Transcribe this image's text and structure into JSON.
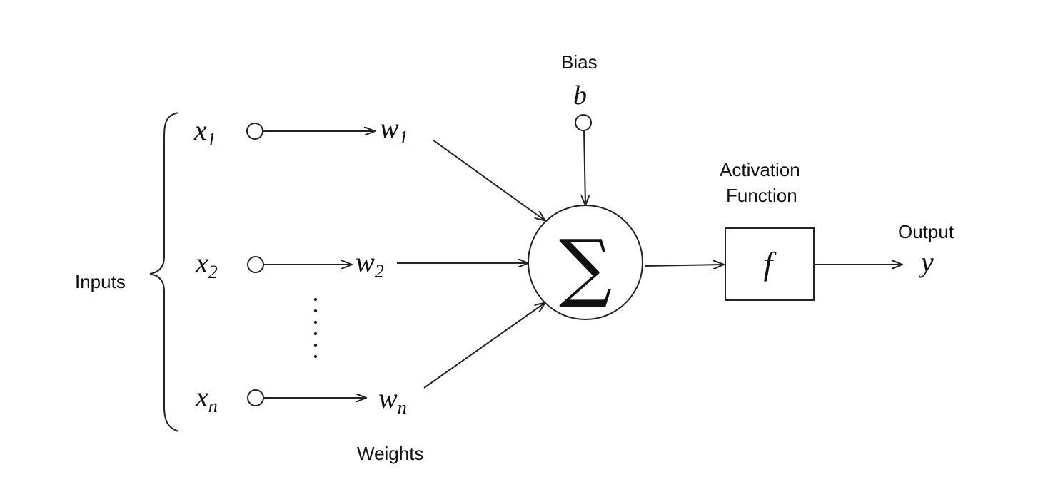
{
  "labels": {
    "inputs": "Inputs",
    "weights": "Weights",
    "bias": "Bias",
    "bias_symbol": "b",
    "activation_line1": "Activation",
    "activation_line2": "Function",
    "activation_symbol": "f",
    "output": "Output",
    "output_symbol": "y",
    "sum_symbol": "∑"
  },
  "inputs": [
    {
      "var": "x",
      "sub": "1",
      "weight": "w",
      "weight_sub": "1"
    },
    {
      "var": "x",
      "sub": "2",
      "weight": "w",
      "weight_sub": "2"
    },
    {
      "var": "x",
      "sub": "n",
      "weight": "w",
      "weight_sub": "n"
    }
  ],
  "ellipsis": "⋮",
  "colors": {
    "stroke": "#222222",
    "text": "#111111",
    "background": "#ffffff"
  }
}
